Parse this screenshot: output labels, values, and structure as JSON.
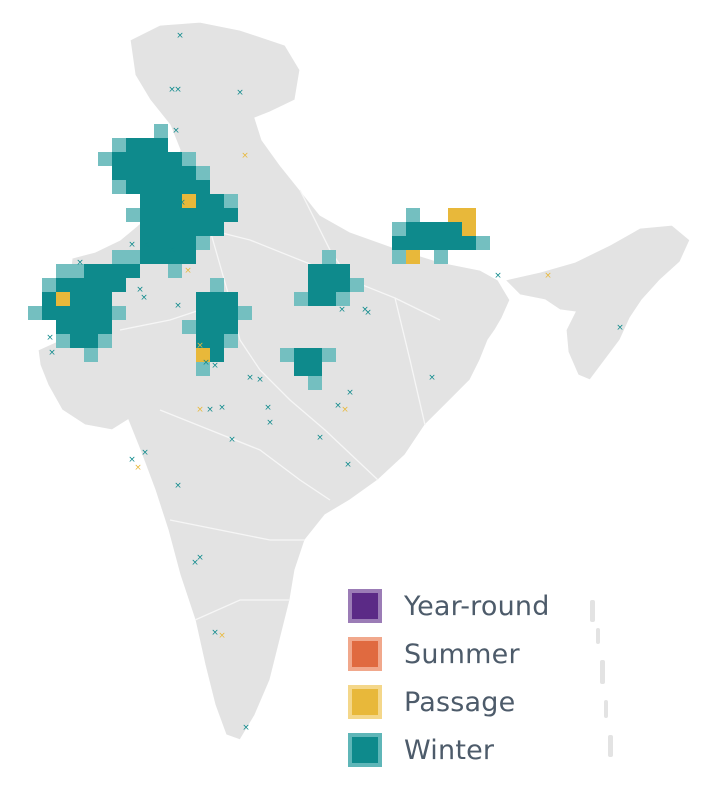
{
  "map": {
    "country": "India",
    "cells_by_season": {
      "winter": [
        [
          9,
          7
        ],
        [
          10,
          7
        ],
        [
          11,
          7
        ],
        [
          8,
          8
        ],
        [
          9,
          8
        ],
        [
          10,
          8
        ],
        [
          11,
          8
        ],
        [
          12,
          8
        ],
        [
          8,
          9
        ],
        [
          9,
          9
        ],
        [
          10,
          9
        ],
        [
          11,
          9
        ],
        [
          12,
          9
        ],
        [
          13,
          9
        ],
        [
          9,
          10
        ],
        [
          10,
          10
        ],
        [
          11,
          10
        ],
        [
          12,
          10
        ],
        [
          13,
          10
        ],
        [
          14,
          10
        ],
        [
          10,
          11
        ],
        [
          11,
          11
        ],
        [
          12,
          11
        ],
        [
          13,
          11
        ],
        [
          14,
          11
        ],
        [
          15,
          11
        ],
        [
          10,
          12
        ],
        [
          11,
          12
        ],
        [
          12,
          12
        ],
        [
          13,
          12
        ],
        [
          14,
          12
        ],
        [
          15,
          12
        ],
        [
          16,
          12
        ],
        [
          10,
          13
        ],
        [
          11,
          13
        ],
        [
          12,
          13
        ],
        [
          13,
          13
        ],
        [
          14,
          13
        ],
        [
          15,
          13
        ],
        [
          10,
          14
        ],
        [
          11,
          14
        ],
        [
          12,
          14
        ],
        [
          13,
          14
        ],
        [
          10,
          15
        ],
        [
          11,
          15
        ],
        [
          12,
          15
        ],
        [
          13,
          15
        ],
        [
          6,
          16
        ],
        [
          7,
          16
        ],
        [
          8,
          16
        ],
        [
          9,
          16
        ],
        [
          4,
          17
        ],
        [
          5,
          17
        ],
        [
          6,
          17
        ],
        [
          7,
          17
        ],
        [
          8,
          17
        ],
        [
          3,
          18
        ],
        [
          4,
          18
        ],
        [
          5,
          18
        ],
        [
          6,
          18
        ],
        [
          7,
          18
        ],
        [
          3,
          19
        ],
        [
          4,
          19
        ],
        [
          5,
          19
        ],
        [
          6,
          19
        ],
        [
          7,
          19
        ],
        [
          4,
          20
        ],
        [
          5,
          20
        ],
        [
          6,
          20
        ],
        [
          7,
          20
        ],
        [
          5,
          21
        ],
        [
          6,
          21
        ],
        [
          14,
          18
        ],
        [
          15,
          18
        ],
        [
          16,
          18
        ],
        [
          14,
          19
        ],
        [
          15,
          19
        ],
        [
          16,
          19
        ],
        [
          14,
          20
        ],
        [
          15,
          20
        ],
        [
          16,
          20
        ],
        [
          14,
          21
        ],
        [
          15,
          21
        ],
        [
          14,
          22
        ],
        [
          15,
          22
        ],
        [
          22,
          16
        ],
        [
          23,
          16
        ],
        [
          24,
          16
        ],
        [
          22,
          17
        ],
        [
          23,
          17
        ],
        [
          24,
          17
        ],
        [
          22,
          18
        ],
        [
          23,
          18
        ],
        [
          21,
          22
        ],
        [
          22,
          22
        ],
        [
          21,
          23
        ],
        [
          22,
          23
        ],
        [
          29,
          13
        ],
        [
          30,
          13
        ],
        [
          31,
          13
        ],
        [
          32,
          13
        ],
        [
          28,
          14
        ],
        [
          29,
          14
        ],
        [
          30,
          14
        ],
        [
          31,
          14
        ],
        [
          32,
          14
        ],
        [
          33,
          14
        ]
      ],
      "passage": [
        [
          13,
          11
        ],
        [
          14,
          22
        ],
        [
          4,
          18
        ],
        [
          32,
          12
        ],
        [
          33,
          12
        ],
        [
          33,
          13
        ],
        [
          29,
          15
        ]
      ],
      "summer": [],
      "year_round": []
    },
    "sighting_markers": [
      [
        180,
        38
      ],
      [
        172,
        92
      ],
      [
        178,
        92
      ],
      [
        240,
        95
      ],
      [
        176,
        133
      ],
      [
        245,
        158
      ],
      [
        182,
        205
      ],
      [
        132,
        247
      ],
      [
        146,
        247
      ],
      [
        80,
        265
      ],
      [
        172,
        252
      ],
      [
        188,
        273
      ],
      [
        140,
        292
      ],
      [
        144,
        300
      ],
      [
        178,
        308
      ],
      [
        50,
        340
      ],
      [
        52,
        355
      ],
      [
        200,
        348
      ],
      [
        206,
        365
      ],
      [
        215,
        368
      ],
      [
        250,
        380
      ],
      [
        260,
        382
      ],
      [
        268,
        410
      ],
      [
        200,
        412
      ],
      [
        210,
        412
      ],
      [
        222,
        410
      ],
      [
        232,
        442
      ],
      [
        270,
        425
      ],
      [
        350,
        395
      ],
      [
        345,
        412
      ],
      [
        338,
        408
      ],
      [
        365,
        312
      ],
      [
        368,
        315
      ],
      [
        342,
        312
      ],
      [
        145,
        455
      ],
      [
        138,
        470
      ],
      [
        132,
        462
      ],
      [
        178,
        488
      ],
      [
        200,
        560
      ],
      [
        195,
        565
      ],
      [
        215,
        635
      ],
      [
        222,
        638
      ],
      [
        246,
        730
      ],
      [
        348,
        467
      ],
      [
        320,
        440
      ],
      [
        432,
        380
      ],
      [
        498,
        278
      ],
      [
        548,
        278
      ],
      [
        620,
        330
      ]
    ]
  },
  "legend": {
    "items": [
      {
        "label": "Year-round",
        "fill": "#5b2a86",
        "border": "#9b7cb6"
      },
      {
        "label": "Summer",
        "fill": "#e06a40",
        "border": "#f1a88c"
      },
      {
        "label": "Passage",
        "fill": "#e8b83a",
        "border": "#f4d78a"
      },
      {
        "label": "Winter",
        "fill": "#0e8a8c",
        "border": "#5fb6b8"
      }
    ]
  },
  "colors": {
    "land": "#e3e3e3",
    "border": "#ffffff",
    "winter_cell": "#0e8a8c",
    "winter_fringe": "#74bfc0",
    "passage_cell": "#e8b83a",
    "marker_teal": "#0e8a8c",
    "marker_yellow": "#e8b83a"
  }
}
